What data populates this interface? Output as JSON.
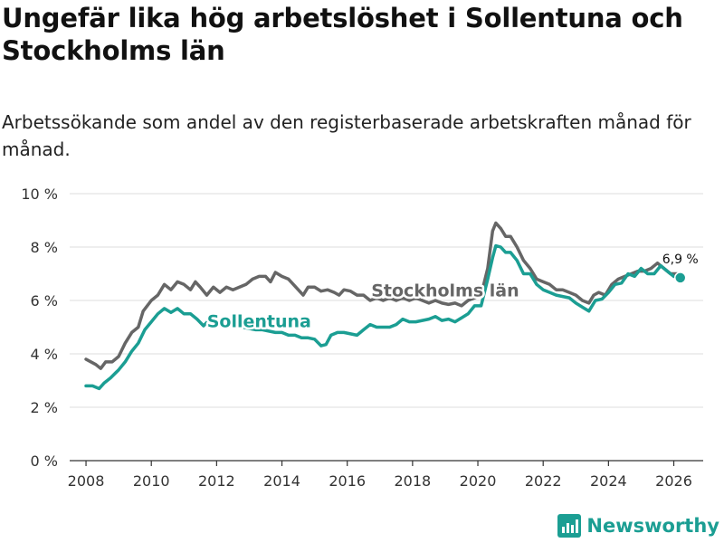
{
  "header": {
    "title": "Ungefär lika hög arbetslöshet i Sollentuna och Stockholms län",
    "subtitle": "Arbetssökande som andel av den registerbaserade arbetskraften månad för månad."
  },
  "brand": {
    "name": "Newsworthy",
    "icon": "bar-chart-logo-icon",
    "color": "#1b9e93"
  },
  "chart_data": {
    "type": "line",
    "title": "Ungefär lika hög arbetslöshet i Sollentuna och Stockholms län",
    "xlabel": "",
    "ylabel": "",
    "xlim": [
      2007.5,
      2026.9
    ],
    "ylim": [
      0,
      10
    ],
    "x_ticks": [
      2008,
      2010,
      2012,
      2014,
      2016,
      2018,
      2020,
      2022,
      2024,
      2026
    ],
    "x_tick_labels": [
      "2008",
      "2010",
      "2012",
      "2014",
      "2016",
      "2018",
      "2020",
      "2022",
      "2024",
      "2026"
    ],
    "y_ticks": [
      0,
      2,
      4,
      6,
      8,
      10
    ],
    "y_tick_labels": [
      "0 %",
      "2 %",
      "4 %",
      "6 %",
      "8 %",
      "10 %"
    ],
    "grid": true,
    "series": [
      {
        "name": "Stockholms län",
        "color": "#666666",
        "points": [
          [
            2008.0,
            3.8
          ],
          [
            2008.3,
            3.6
          ],
          [
            2008.45,
            3.45
          ],
          [
            2008.6,
            3.7
          ],
          [
            2008.8,
            3.7
          ],
          [
            2009.0,
            3.9
          ],
          [
            2009.2,
            4.4
          ],
          [
            2009.4,
            4.8
          ],
          [
            2009.6,
            5.0
          ],
          [
            2009.75,
            5.6
          ],
          [
            2010.0,
            6.0
          ],
          [
            2010.2,
            6.2
          ],
          [
            2010.4,
            6.6
          ],
          [
            2010.6,
            6.4
          ],
          [
            2010.8,
            6.7
          ],
          [
            2011.0,
            6.6
          ],
          [
            2011.2,
            6.4
          ],
          [
            2011.35,
            6.7
          ],
          [
            2011.5,
            6.5
          ],
          [
            2011.7,
            6.2
          ],
          [
            2011.9,
            6.5
          ],
          [
            2012.1,
            6.3
          ],
          [
            2012.3,
            6.5
          ],
          [
            2012.5,
            6.4
          ],
          [
            2012.7,
            6.5
          ],
          [
            2012.9,
            6.6
          ],
          [
            2013.1,
            6.8
          ],
          [
            2013.3,
            6.9
          ],
          [
            2013.5,
            6.9
          ],
          [
            2013.65,
            6.7
          ],
          [
            2013.8,
            7.05
          ],
          [
            2014.0,
            6.9
          ],
          [
            2014.2,
            6.8
          ],
          [
            2014.35,
            6.6
          ],
          [
            2014.5,
            6.4
          ],
          [
            2014.65,
            6.2
          ],
          [
            2014.8,
            6.5
          ],
          [
            2015.0,
            6.5
          ],
          [
            2015.2,
            6.35
          ],
          [
            2015.4,
            6.4
          ],
          [
            2015.6,
            6.3
          ],
          [
            2015.75,
            6.2
          ],
          [
            2015.9,
            6.4
          ],
          [
            2016.1,
            6.35
          ],
          [
            2016.3,
            6.2
          ],
          [
            2016.5,
            6.2
          ],
          [
            2016.7,
            6.0
          ],
          [
            2016.9,
            6.1
          ],
          [
            2017.1,
            6.0
          ],
          [
            2017.3,
            6.1
          ],
          [
            2017.5,
            6.0
          ],
          [
            2017.7,
            6.1
          ],
          [
            2017.9,
            6.0
          ],
          [
            2018.1,
            6.1
          ],
          [
            2018.3,
            6.0
          ],
          [
            2018.5,
            5.9
          ],
          [
            2018.7,
            6.0
          ],
          [
            2018.9,
            5.9
          ],
          [
            2019.1,
            5.85
          ],
          [
            2019.3,
            5.9
          ],
          [
            2019.5,
            5.8
          ],
          [
            2019.7,
            6.0
          ],
          [
            2019.9,
            6.1
          ],
          [
            2020.1,
            6.2
          ],
          [
            2020.3,
            7.2
          ],
          [
            2020.45,
            8.6
          ],
          [
            2020.55,
            8.9
          ],
          [
            2020.7,
            8.7
          ],
          [
            2020.85,
            8.4
          ],
          [
            2021.0,
            8.4
          ],
          [
            2021.2,
            8.0
          ],
          [
            2021.4,
            7.5
          ],
          [
            2021.6,
            7.2
          ],
          [
            2021.8,
            6.8
          ],
          [
            2022.0,
            6.7
          ],
          [
            2022.2,
            6.6
          ],
          [
            2022.4,
            6.4
          ],
          [
            2022.6,
            6.4
          ],
          [
            2022.8,
            6.3
          ],
          [
            2023.0,
            6.2
          ],
          [
            2023.2,
            6.0
          ],
          [
            2023.4,
            5.9
          ],
          [
            2023.55,
            6.2
          ],
          [
            2023.7,
            6.3
          ],
          [
            2023.9,
            6.2
          ],
          [
            2024.1,
            6.6
          ],
          [
            2024.3,
            6.8
          ],
          [
            2024.5,
            6.9
          ],
          [
            2024.7,
            7.0
          ],
          [
            2024.9,
            7.1
          ],
          [
            2025.1,
            7.1
          ],
          [
            2025.3,
            7.2
          ],
          [
            2025.5,
            7.4
          ],
          [
            2025.7,
            7.2
          ],
          [
            2025.9,
            7.0
          ],
          [
            2026.1,
            7.0
          ],
          [
            2026.2,
            6.9
          ]
        ]
      },
      {
        "name": "Sollentuna",
        "color": "#1b9e93",
        "points": [
          [
            2008.0,
            2.8
          ],
          [
            2008.2,
            2.8
          ],
          [
            2008.4,
            2.7
          ],
          [
            2008.55,
            2.9
          ],
          [
            2008.75,
            3.1
          ],
          [
            2009.0,
            3.4
          ],
          [
            2009.2,
            3.7
          ],
          [
            2009.4,
            4.1
          ],
          [
            2009.6,
            4.4
          ],
          [
            2009.8,
            4.9
          ],
          [
            2010.0,
            5.2
          ],
          [
            2010.2,
            5.5
          ],
          [
            2010.4,
            5.7
          ],
          [
            2010.6,
            5.55
          ],
          [
            2010.8,
            5.7
          ],
          [
            2011.0,
            5.5
          ],
          [
            2011.2,
            5.5
          ],
          [
            2011.4,
            5.3
          ],
          [
            2011.6,
            5.05
          ],
          [
            2011.8,
            5.3
          ],
          [
            2012.0,
            5.3
          ],
          [
            2012.2,
            5.2
          ],
          [
            2012.4,
            5.15
          ],
          [
            2012.6,
            5.1
          ],
          [
            2012.8,
            5.0
          ],
          [
            2013.0,
            4.95
          ],
          [
            2013.2,
            4.9
          ],
          [
            2013.4,
            4.9
          ],
          [
            2013.6,
            4.85
          ],
          [
            2013.8,
            4.8
          ],
          [
            2014.0,
            4.8
          ],
          [
            2014.2,
            4.7
          ],
          [
            2014.4,
            4.7
          ],
          [
            2014.6,
            4.6
          ],
          [
            2014.8,
            4.6
          ],
          [
            2015.0,
            4.55
          ],
          [
            2015.2,
            4.3
          ],
          [
            2015.35,
            4.35
          ],
          [
            2015.5,
            4.7
          ],
          [
            2015.7,
            4.8
          ],
          [
            2015.9,
            4.8
          ],
          [
            2016.1,
            4.75
          ],
          [
            2016.3,
            4.7
          ],
          [
            2016.5,
            4.9
          ],
          [
            2016.7,
            5.1
          ],
          [
            2016.9,
            5.0
          ],
          [
            2017.1,
            5.0
          ],
          [
            2017.3,
            5.0
          ],
          [
            2017.5,
            5.1
          ],
          [
            2017.7,
            5.3
          ],
          [
            2017.9,
            5.2
          ],
          [
            2018.1,
            5.2
          ],
          [
            2018.3,
            5.25
          ],
          [
            2018.5,
            5.3
          ],
          [
            2018.7,
            5.4
          ],
          [
            2018.9,
            5.25
          ],
          [
            2019.1,
            5.3
          ],
          [
            2019.3,
            5.2
          ],
          [
            2019.5,
            5.35
          ],
          [
            2019.7,
            5.5
          ],
          [
            2019.9,
            5.8
          ],
          [
            2020.1,
            5.8
          ],
          [
            2020.3,
            6.8
          ],
          [
            2020.45,
            7.6
          ],
          [
            2020.55,
            8.05
          ],
          [
            2020.7,
            8.0
          ],
          [
            2020.85,
            7.8
          ],
          [
            2021.0,
            7.8
          ],
          [
            2021.2,
            7.5
          ],
          [
            2021.4,
            7.0
          ],
          [
            2021.6,
            7.0
          ],
          [
            2021.8,
            6.6
          ],
          [
            2022.0,
            6.4
          ],
          [
            2022.2,
            6.3
          ],
          [
            2022.4,
            6.2
          ],
          [
            2022.6,
            6.15
          ],
          [
            2022.8,
            6.1
          ],
          [
            2023.0,
            5.9
          ],
          [
            2023.2,
            5.75
          ],
          [
            2023.4,
            5.6
          ],
          [
            2023.6,
            6.0
          ],
          [
            2023.8,
            6.05
          ],
          [
            2024.0,
            6.3
          ],
          [
            2024.2,
            6.6
          ],
          [
            2024.4,
            6.65
          ],
          [
            2024.6,
            7.0
          ],
          [
            2024.8,
            6.9
          ],
          [
            2025.0,
            7.2
          ],
          [
            2025.2,
            7.0
          ],
          [
            2025.4,
            7.0
          ],
          [
            2025.6,
            7.3
          ],
          [
            2025.8,
            7.1
          ],
          [
            2026.0,
            6.9
          ],
          [
            2026.2,
            6.85
          ]
        ]
      }
    ],
    "labels": [
      {
        "series": "Stockholms län",
        "text": "Stockholms län",
        "x": 2019.0,
        "y": 6.15
      },
      {
        "series": "Sollentuna",
        "text": "Sollentuna",
        "x": 2013.3,
        "y": 5.0
      }
    ],
    "end_point": {
      "series": "Sollentuna",
      "x": 2026.2,
      "y": 6.85,
      "label": "6,9 %"
    }
  }
}
